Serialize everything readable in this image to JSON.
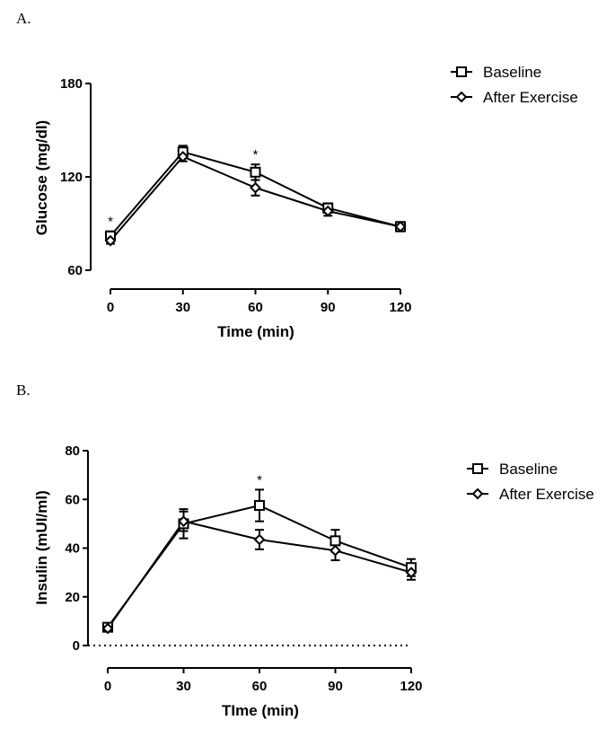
{
  "chart_data": [
    {
      "type": "line",
      "panel_label": "A.",
      "xlabel": "Time (min)",
      "ylabel": "Glucose (mg/dl)",
      "x": [
        0,
        30,
        60,
        90,
        120
      ],
      "xticks": [
        "0",
        "30",
        "60",
        "90",
        "120"
      ],
      "ylim": [
        60,
        180
      ],
      "yticks": [
        "60",
        "120",
        "180"
      ],
      "series": [
        {
          "name": "Baseline",
          "marker": "square",
          "values": [
            82,
            136,
            123,
            100,
            88
          ],
          "errors": [
            3,
            4,
            5,
            3,
            3
          ]
        },
        {
          "name": "After Exercise",
          "marker": "diamond",
          "values": [
            79,
            133,
            113,
            98,
            88
          ],
          "errors": [
            2,
            3,
            5,
            3,
            2
          ]
        }
      ],
      "significance": [
        {
          "x": 0,
          "label": "*"
        },
        {
          "x": 60,
          "label": "*"
        }
      ],
      "legend_position": "top-right"
    },
    {
      "type": "line",
      "panel_label": "B.",
      "xlabel": "TIme (min)",
      "ylabel": "Insulin (mUI/ml)",
      "x": [
        0,
        30,
        60,
        90,
        120
      ],
      "xticks": [
        "0",
        "30",
        "60",
        "90",
        "120"
      ],
      "ylim": [
        0,
        80
      ],
      "yticks": [
        "0",
        "20",
        "40",
        "60",
        "80"
      ],
      "reference_line": {
        "y": 0,
        "style": "dotted"
      },
      "series": [
        {
          "name": "Baseline",
          "marker": "square",
          "values": [
            7.5,
            50,
            57.5,
            43,
            32
          ],
          "errors": [
            1.5,
            6,
            6.5,
            4.5,
            3.5
          ]
        },
        {
          "name": "After Exercise",
          "marker": "diamond",
          "values": [
            7,
            51,
            43.5,
            39,
            30
          ],
          "errors": [
            1,
            4,
            4,
            4,
            3
          ]
        }
      ],
      "significance": [
        {
          "x": 60,
          "label": "*"
        }
      ],
      "legend_position": "top-right"
    }
  ]
}
